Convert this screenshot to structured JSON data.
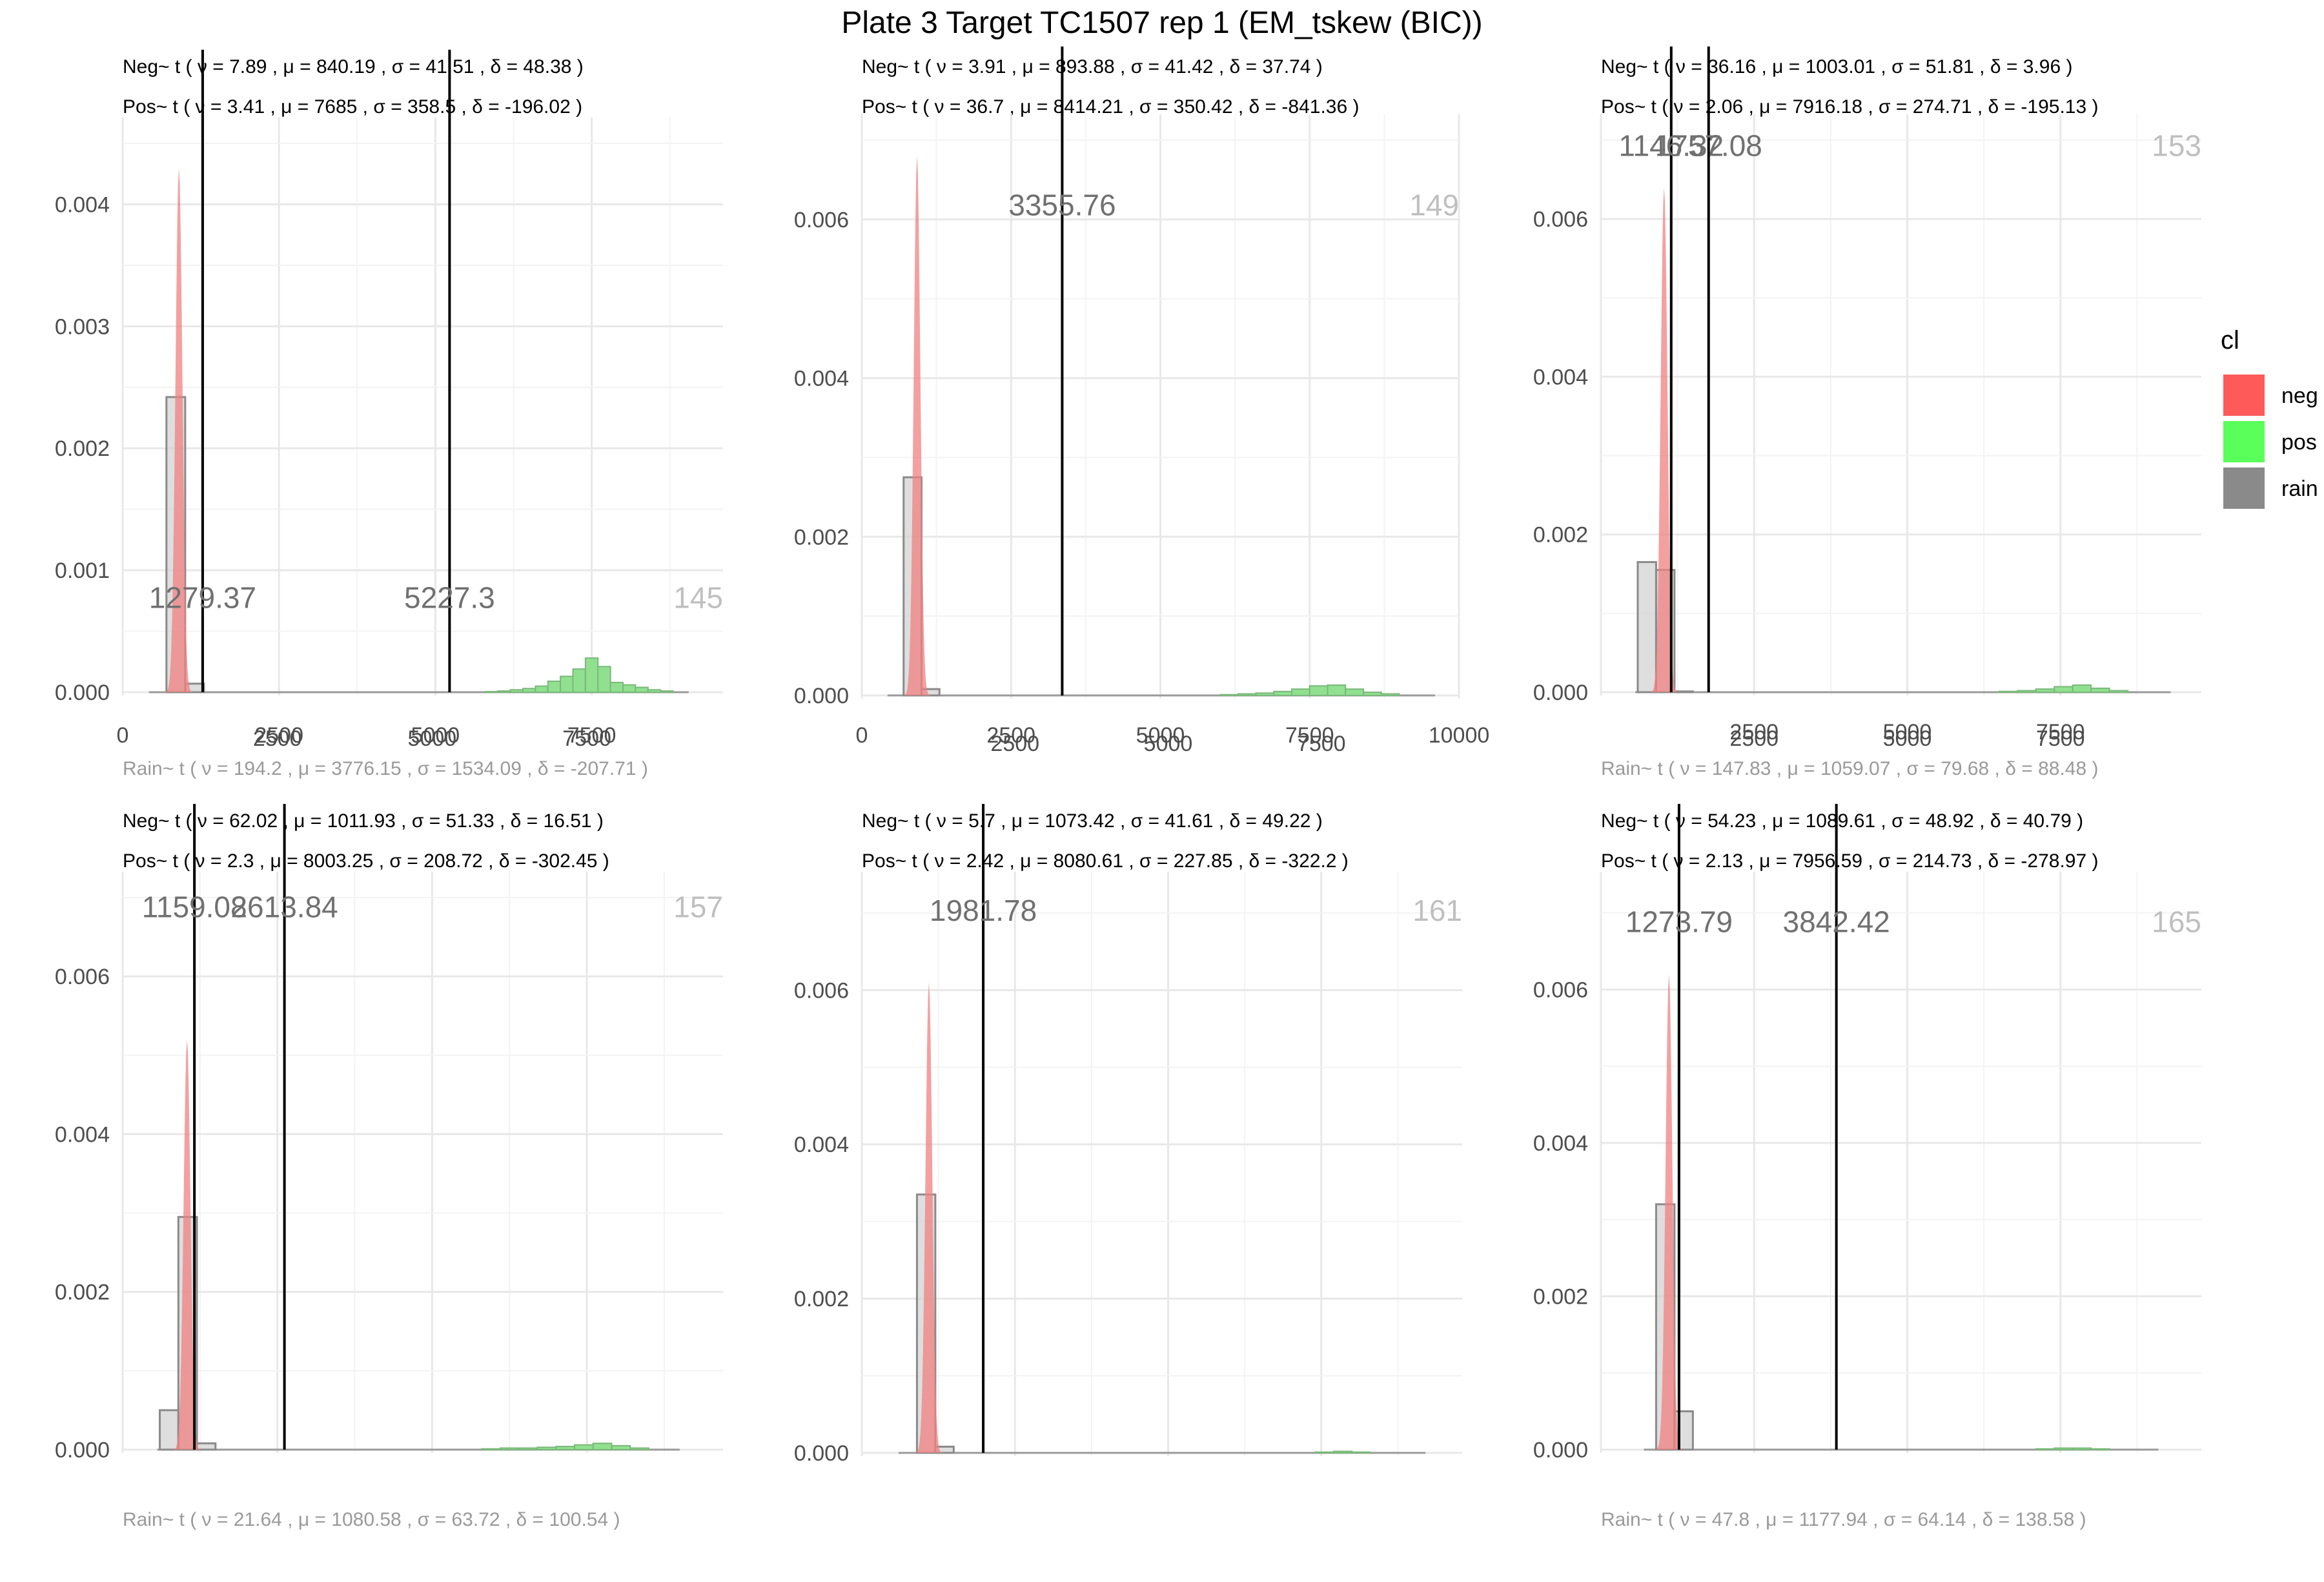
{
  "title": "Plate 3 Target TC1507 rep 1 (EM_tskew (BIC))",
  "legend": {
    "title": "cl",
    "items": [
      {
        "label": "neg",
        "color": "#FF5A5A"
      },
      {
        "label": "pos",
        "color": "#5AFF5A"
      },
      {
        "label": "rain",
        "color": "#8A8A8A"
      }
    ]
  },
  "colors": {
    "neg": "#F08080",
    "pos": "#90E090",
    "rain": "#D0D0D0",
    "well_label": "#BFBFBF",
    "threshold_label": "#707070"
  },
  "chart_data": [
    {
      "type": "bar",
      "neg_params": "Neg~ t ( ν = 7.89 , μ = 840.19 , σ = 41.51 , δ = 48.38 )",
      "pos_params": "Pos~ t ( ν = 3.41 , μ = 7685 , σ = 358.5 , δ = -196.02 )",
      "rain_params": "Rain~ t ( ν = 194.2 , μ = 3776.15 , σ = 1534.09 , δ = -207.71 )",
      "xlim": [
        0,
        9600
      ],
      "ylim": [
        0,
        0.0045
      ],
      "xticks": [
        0,
        2500,
        5000,
        7500
      ],
      "yticks": [
        0,
        0.001,
        0.002,
        0.003,
        0.004
      ],
      "ytick_labels": [
        "0.000",
        "0.001",
        "0.002",
        "0.003",
        "0.004"
      ],
      "thresholds": [
        {
          "x": 1279.37,
          "label": "1279.37"
        },
        {
          "x": 5227.3,
          "label": "5227.3"
        }
      ],
      "threshold_label_y": 0.00069,
      "well": "145",
      "range": [
        420,
        9050
      ],
      "neg_peak": {
        "mu": 900,
        "sigma": 55,
        "height": 0.0043
      },
      "rain_bars": [
        {
          "x0": 700,
          "x1": 1000,
          "y": 0.00242
        },
        {
          "x0": 1000,
          "x1": 1300,
          "y": 7e-05
        }
      ],
      "pos_bars": [
        [
          5800,
          6000,
          5e-06
        ],
        [
          6000,
          6200,
          1e-05
        ],
        [
          6200,
          6400,
          2e-05
        ],
        [
          6400,
          6600,
          3e-05
        ],
        [
          6600,
          6800,
          5e-05
        ],
        [
          6800,
          7000,
          9e-05
        ],
        [
          7000,
          7200,
          0.00013
        ],
        [
          7200,
          7400,
          0.00019
        ],
        [
          7400,
          7600,
          0.00028
        ],
        [
          7600,
          7800,
          0.00021
        ],
        [
          7800,
          8000,
          8e-05
        ],
        [
          8000,
          8200,
          6e-05
        ],
        [
          8200,
          8400,
          4e-05
        ],
        [
          8400,
          8600,
          2e-05
        ],
        [
          8600,
          8800,
          1e-05
        ]
      ]
    },
    {
      "type": "bar",
      "neg_params": "Neg~ t ( ν = 3.91 , μ = 893.88 , σ = 41.42 , δ = 37.74 )",
      "pos_params": "Pos~ t ( ν = 36.7 , μ = 8414.21 , σ = 350.42 , δ = -841.36 )",
      "rain_params": "",
      "xlim": [
        0,
        10000
      ],
      "ylim": [
        0,
        0.007
      ],
      "xticks": [
        0,
        2500,
        5000,
        7500,
        10000
      ],
      "yticks": [
        0,
        0.002,
        0.004,
        0.006
      ],
      "ytick_labels": [
        "0.000",
        "0.002",
        "0.004",
        "0.006"
      ],
      "thresholds": [
        {
          "x": 3355.76,
          "label": "3355.76"
        }
      ],
      "threshold_label_y": 0.00605,
      "well": "149",
      "range": [
        430,
        9600
      ],
      "neg_peak": {
        "mu": 925,
        "sigma": 55,
        "height": 0.0068
      },
      "rain_bars": [
        {
          "x0": 700,
          "x1": 1000,
          "y": 0.00275
        },
        {
          "x0": 1000,
          "x1": 1300,
          "y": 8e-05
        }
      ],
      "pos_bars": [
        [
          6000,
          6300,
          1e-05
        ],
        [
          6300,
          6600,
          2e-05
        ],
        [
          6600,
          6900,
          3e-05
        ],
        [
          6900,
          7200,
          5e-05
        ],
        [
          7200,
          7500,
          8e-05
        ],
        [
          7500,
          7800,
          0.00012
        ],
        [
          7800,
          8100,
          0.00013
        ],
        [
          8100,
          8400,
          8e-05
        ],
        [
          8400,
          8700,
          4e-05
        ],
        [
          8700,
          9000,
          2e-05
        ]
      ]
    },
    {
      "type": "bar",
      "neg_params": "Neg~ t ( ν = 36.16 , μ = 1003.01 , σ = 51.81 , δ = 3.96 )",
      "pos_params": "Pos~ t ( ν = 2.06 , μ = 7916.18 , σ = 274.71 , δ = -195.13 )",
      "rain_params": "Rain~ t ( ν = 147.83 , μ = 1059.07 , σ = 79.68 , δ = 88.48 )",
      "xlim": [
        0,
        9800
      ],
      "ylim": [
        0,
        0.007
      ],
      "xticks": [
        2500,
        5000,
        7500
      ],
      "yticks": [
        0,
        0.002,
        0.004,
        0.006
      ],
      "ytick_labels": [
        "0.000",
        "0.002",
        "0.004",
        "0.006"
      ],
      "thresholds": [
        {
          "x": 1146.32,
          "label": "1146.32"
        },
        {
          "x": 1757.08,
          "label": "1757.08"
        }
      ],
      "threshold_label_y": 0.0068,
      "well": "153",
      "range": [
        560,
        9300
      ],
      "neg_peak": {
        "mu": 1030,
        "sigma": 55,
        "height": 0.0064
      },
      "rain_bars": [
        {
          "x0": 600,
          "x1": 900,
          "y": 0.00165
        },
        {
          "x0": 900,
          "x1": 1200,
          "y": 0.00155
        },
        {
          "x0": 1200,
          "x1": 1500,
          "y": 1e-05
        }
      ],
      "pos_bars": [
        [
          6500,
          6800,
          1e-05
        ],
        [
          6800,
          7100,
          2e-05
        ],
        [
          7100,
          7400,
          4e-05
        ],
        [
          7400,
          7700,
          7e-05
        ],
        [
          7700,
          8000,
          9e-05
        ],
        [
          8000,
          8300,
          5e-05
        ],
        [
          8300,
          8600,
          2e-05
        ]
      ]
    },
    {
      "type": "bar",
      "neg_params": "Neg~ t ( ν = 62.02 , μ = 1011.93 , σ = 51.33 , δ = 16.51 )",
      "pos_params": "Pos~ t ( ν = 2.3 , μ = 8003.25 , σ = 208.72 , δ = -302.45 )",
      "rain_params": "Rain~ t ( ν = 21.64 , μ = 1080.58 , σ = 63.72 , δ = 100.54 )",
      "xlim": [
        0,
        9700
      ],
      "ylim": [
        0,
        0.007
      ],
      "xticks": [
        2500,
        5000,
        7500
      ],
      "yticks": [
        0,
        0.002,
        0.004,
        0.006
      ],
      "ytick_labels": [
        "0.000",
        "0.002",
        "0.004",
        "0.006"
      ],
      "thresholds": [
        {
          "x": 1159.08,
          "label": "1159.08"
        },
        {
          "x": 2613.84,
          "label": "2613.84"
        }
      ],
      "threshold_label_y": 0.00675,
      "well": "157",
      "range": [
        560,
        9000
      ],
      "neg_peak": {
        "mu": 1040,
        "sigma": 55,
        "height": 0.0052
      },
      "rain_bars": [
        {
          "x0": 600,
          "x1": 900,
          "y": 0.0005
        },
        {
          "x0": 900,
          "x1": 1200,
          "y": 0.00295
        },
        {
          "x0": 1200,
          "x1": 1500,
          "y": 8e-05
        }
      ],
      "pos_bars": [
        [
          5800,
          6100,
          1e-05
        ],
        [
          6100,
          6400,
          2e-05
        ],
        [
          6400,
          6700,
          2e-05
        ],
        [
          6700,
          7000,
          3e-05
        ],
        [
          7000,
          7300,
          4e-05
        ],
        [
          7300,
          7600,
          6e-05
        ],
        [
          7600,
          7900,
          8e-05
        ],
        [
          7900,
          8200,
          5e-05
        ],
        [
          8200,
          8500,
          2e-05
        ]
      ]
    },
    {
      "type": "bar",
      "neg_params": "Neg~ t ( ν = 5.7 , μ = 1073.42 , σ = 41.61 , δ = 49.22 )",
      "pos_params": "Pos~ t ( ν = 2.42 , μ = 8080.61 , σ = 227.85 , δ = -322.2 )",
      "rain_params": "",
      "xlim": [
        0,
        9800
      ],
      "ylim": [
        0,
        0.0072
      ],
      "xticks": [
        2500,
        5000,
        7500
      ],
      "yticks": [
        0,
        0.002,
        0.004,
        0.006
      ],
      "ytick_labels": [
        "0.000",
        "0.002",
        "0.004",
        "0.006"
      ],
      "thresholds": [
        {
          "x": 1981.78,
          "label": "1981.78"
        }
      ],
      "threshold_label_y": 0.0069,
      "well": "161",
      "range": [
        600,
        9200
      ],
      "neg_peak": {
        "mu": 1095,
        "sigma": 55,
        "height": 0.0061
      },
      "rain_bars": [
        {
          "x0": 900,
          "x1": 1200,
          "y": 0.00335
        },
        {
          "x0": 1200,
          "x1": 1500,
          "y": 8e-05
        }
      ],
      "pos_bars": [
        [
          7400,
          7700,
          1e-05
        ],
        [
          7700,
          8000,
          2e-05
        ],
        [
          8000,
          8300,
          1e-05
        ]
      ]
    },
    {
      "type": "bar",
      "neg_params": "Neg~ t ( ν = 54.23 , μ = 1089.61 , σ = 48.92 , δ = 40.79 )",
      "pos_params": "Pos~ t ( ν = 2.13 , μ = 7956.59 , σ = 214.73 , δ = -278.97 )",
      "rain_params": "Rain~ t ( ν = 47.8 , μ = 1177.94 , σ = 64.14 , δ = 138.58 )",
      "xlim": [
        0,
        9800
      ],
      "ylim": [
        0,
        0.0072
      ],
      "xticks": [
        2500,
        5000,
        7500
      ],
      "yticks": [
        0,
        0.002,
        0.004,
        0.006
      ],
      "ytick_labels": [
        "0.000",
        "0.002",
        "0.004",
        "0.006"
      ],
      "thresholds": [
        {
          "x": 1273.79,
          "label": "1273.79"
        },
        {
          "x": 3842.42,
          "label": "3842.42"
        }
      ],
      "threshold_label_y": 0.00675,
      "well": "165",
      "range": [
        700,
        9100
      ],
      "neg_peak": {
        "mu": 1110,
        "sigma": 55,
        "height": 0.0062
      },
      "rain_bars": [
        {
          "x0": 900,
          "x1": 1200,
          "y": 0.0032
        },
        {
          "x0": 1200,
          "x1": 1500,
          "y": 0.0005
        }
      ],
      "pos_bars": [
        [
          7100,
          7400,
          1e-05
        ],
        [
          7400,
          7700,
          2e-05
        ],
        [
          7700,
          8000,
          2e-05
        ],
        [
          8000,
          8300,
          1e-05
        ]
      ]
    }
  ]
}
